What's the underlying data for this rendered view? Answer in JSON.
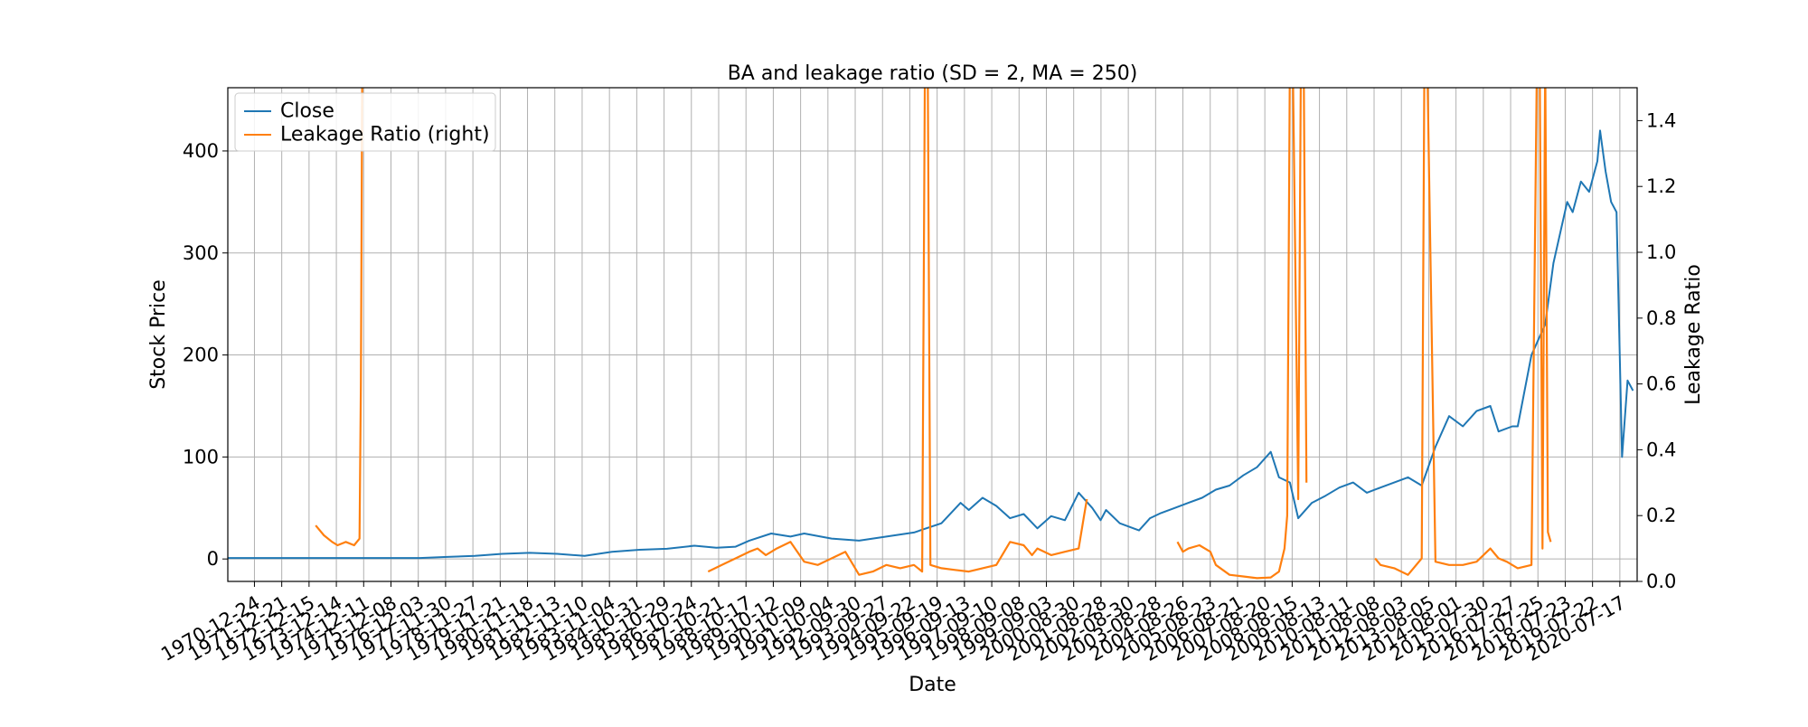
{
  "chart_data": {
    "type": "line",
    "title": "BA and leakage ratio (SD = 2, MA = 250)",
    "xlabel": "Date",
    "ylabel": "Stock Price",
    "ylabel_right": "Leakage Ratio",
    "ylim": [
      -22,
      462
    ],
    "ylim_right": [
      0.0,
      1.5
    ],
    "yticks": [
      0,
      100,
      200,
      300,
      400
    ],
    "yticks_right": [
      0.0,
      0.2,
      0.4,
      0.6,
      0.8,
      1.0,
      1.2,
      1.4
    ],
    "yticks_right_labels": [
      "0.0",
      "0.2",
      "0.4",
      "0.6",
      "0.8",
      "1.0",
      "1.2",
      "1.4"
    ],
    "grid": true,
    "legend": {
      "position": "upper-left",
      "entries": [
        "Close",
        "Leakage Ratio (right)"
      ]
    },
    "x_tick_labels": [
      "1970-12-24",
      "1971-12-21",
      "1972-12-15",
      "1973-12-14",
      "1974-12-11",
      "1975-12-08",
      "1976-12-03",
      "1977-11-30",
      "1978-11-27",
      "1979-11-21",
      "1980-11-18",
      "1981-11-13",
      "1982-11-10",
      "1983-11-04",
      "1984-10-31",
      "1985-10-29",
      "1986-10-24",
      "1987-10-21",
      "1988-10-17",
      "1989-10-12",
      "1990-10-09",
      "1991-10-04",
      "1992-09-30",
      "1993-09-27",
      "1994-09-22",
      "1995-09-19",
      "1996-09-13",
      "1997-09-10",
      "1998-09-08",
      "1999-09-03",
      "2000-08-30",
      "2001-08-28",
      "2002-08-30",
      "2003-08-28",
      "2004-08-26",
      "2005-08-23",
      "2006-08-21",
      "2007-08-20",
      "2008-08-15",
      "2009-08-13",
      "2010-08-11",
      "2011-08-08",
      "2012-08-03",
      "2013-08-05",
      "2014-08-01",
      "2015-07-30",
      "2016-07-27",
      "2017-07-25",
      "2018-07-23",
      "2019-07-22",
      "2020-07-17"
    ],
    "series": [
      {
        "name": "Close",
        "color": "#1f77b4",
        "axis": "left",
        "x": [
          1970.0,
          1972.0,
          1974.0,
          1976.0,
          1977.0,
          1978.0,
          1979.0,
          1980.0,
          1981.0,
          1982.0,
          1983.0,
          1984.0,
          1985.0,
          1986.0,
          1987.0,
          1987.8,
          1988.5,
          1989.0,
          1989.8,
          1990.5,
          1991.0,
          1992.0,
          1993.0,
          1994.0,
          1995.0,
          1996.0,
          1996.7,
          1997.0,
          1997.5,
          1998.0,
          1998.5,
          1999.0,
          1999.5,
          2000.0,
          2000.5,
          2001.0,
          2001.5,
          2001.8,
          2002.0,
          2002.5,
          2003.0,
          2003.2,
          2003.6,
          2004.0,
          2004.5,
          2005.0,
          2005.5,
          2006.0,
          2006.5,
          2007.0,
          2007.5,
          2008.0,
          2008.3,
          2008.7,
          2009.0,
          2009.5,
          2010.0,
          2010.5,
          2011.0,
          2011.5,
          2012.0,
          2012.5,
          2013.0,
          2013.5,
          2014.0,
          2014.5,
          2015.0,
          2015.5,
          2016.0,
          2016.3,
          2016.8,
          2017.0,
          2017.5,
          2018.0,
          2018.3,
          2018.8,
          2019.0,
          2019.3,
          2019.6,
          2019.9,
          2020.0,
          2020.2,
          2020.4,
          2020.6,
          2020.8,
          2021.0,
          2021.2
        ],
        "y": [
          1,
          1,
          1,
          1,
          1,
          2,
          3,
          5,
          6,
          5,
          3,
          7,
          9,
          10,
          13,
          11,
          12,
          18,
          25,
          22,
          25,
          20,
          18,
          22,
          26,
          35,
          55,
          48,
          60,
          52,
          40,
          44,
          30,
          42,
          38,
          65,
          50,
          38,
          48,
          35,
          30,
          28,
          40,
          45,
          50,
          55,
          60,
          68,
          72,
          82,
          90,
          105,
          80,
          75,
          40,
          55,
          62,
          70,
          75,
          65,
          70,
          75,
          80,
          72,
          110,
          140,
          130,
          145,
          150,
          125,
          130,
          130,
          200,
          230,
          290,
          350,
          340,
          370,
          360,
          390,
          420,
          380,
          350,
          340,
          100,
          175,
          165
        ]
      },
      {
        "name": "Leakage Ratio (right)",
        "color": "#ff7f0e",
        "axis": "right",
        "segments": [
          {
            "x": [
              1973.2,
              1973.5,
              1973.8,
              1974.0,
              1974.3,
              1974.6,
              1974.8,
              1974.85,
              1974.9,
              1975.0
            ],
            "y": [
              0.17,
              0.14,
              0.12,
              0.11,
              0.12,
              0.11,
              0.13,
              0.6,
              1.6,
              1.6
            ]
          },
          {
            "x": [
              1987.5,
              1988.0,
              1988.5,
              1989.0,
              1989.3,
              1989.6,
              1990.0,
              1990.5,
              1991.0,
              1991.5,
              1992.0,
              1992.5,
              1993.0,
              1993.5,
              1994.0,
              1994.5,
              1995.0,
              1995.3,
              1995.4,
              1995.5,
              1995.6,
              1996.0,
              1996.5,
              1997.0,
              1997.5,
              1998.0,
              1998.5,
              1999.0,
              1999.2,
              1999.3,
              1999.5,
              2000.0,
              2000.5,
              2001.0,
              2001.2,
              2001.3
            ],
            "y": [
              0.03,
              0.05,
              0.07,
              0.09,
              0.1,
              0.08,
              0.1,
              0.12,
              0.06,
              0.05,
              0.07,
              0.09,
              0.02,
              0.03,
              0.05,
              0.04,
              0.05,
              0.03,
              1.6,
              1.6,
              0.05,
              0.04,
              0.035,
              0.03,
              0.04,
              0.05,
              0.12,
              0.11,
              0.09,
              0.08,
              0.1,
              0.08,
              0.09,
              0.1,
              0.2,
              0.25
            ]
          },
          {
            "x": [
              2004.6,
              2004.8,
              2005.0,
              2005.4,
              2005.8,
              2006.0,
              2006.5,
              2007.0,
              2007.5,
              2008.0,
              2008.3,
              2008.5,
              2008.6,
              2008.7,
              2008.8,
              2009.0,
              2009.1,
              2009.2,
              2009.3
            ],
            "y": [
              0.12,
              0.09,
              0.1,
              0.11,
              0.09,
              0.05,
              0.02,
              0.015,
              0.01,
              0.012,
              0.03,
              0.1,
              0.2,
              1.6,
              1.6,
              0.25,
              1.6,
              1.6,
              0.3
            ]
          },
          {
            "x": [
              2011.8,
              2012.0,
              2012.5,
              2013.0,
              2013.2,
              2013.5,
              2013.6,
              2013.7,
              2014.0,
              2014.5,
              2015.0,
              2015.5,
              2016.0,
              2016.3,
              2016.6,
              2017.0,
              2017.5,
              2017.7,
              2017.8,
              2017.9,
              2018.0,
              2018.1,
              2018.2
            ],
            "y": [
              0.07,
              0.05,
              0.04,
              0.02,
              0.04,
              0.07,
              1.6,
              1.6,
              0.06,
              0.05,
              0.05,
              0.06,
              0.1,
              0.07,
              0.06,
              0.04,
              0.05,
              1.6,
              1.6,
              0.1,
              1.6,
              0.15,
              0.12
            ]
          }
        ]
      }
    ]
  }
}
